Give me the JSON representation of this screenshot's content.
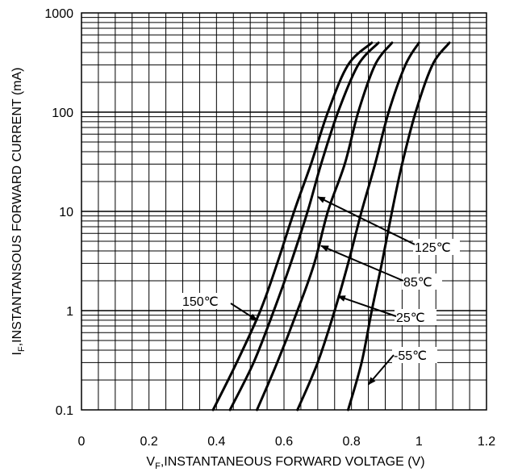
{
  "chart_data": {
    "type": "line",
    "xlabel_main": "V",
    "xlabel_sub": "F",
    "xlabel_rest": ",INSTANTANEOUS FORWARD VOLTAGE (V)",
    "ylabel_main": "I",
    "ylabel_sub": "F",
    "ylabel_rest": ",INSTANTANSOUS FORWARD CURRENT (mA)",
    "xlim": [
      0,
      1.2
    ],
    "ylim": [
      0.1,
      1000
    ],
    "yscale": "log",
    "grid": true,
    "x_ticks": [
      "0",
      "0.2",
      "0.4",
      "0.6",
      "0.8",
      "1",
      "1.2"
    ],
    "y_ticks": [
      "0.1",
      "1",
      "10",
      "100",
      "1000"
    ],
    "series": [
      {
        "name": "150℃",
        "points": [
          [
            0.39,
            0.1
          ],
          [
            0.46,
            0.3
          ],
          [
            0.53,
            1
          ],
          [
            0.58,
            3
          ],
          [
            0.63,
            10
          ],
          [
            0.68,
            30
          ],
          [
            0.73,
            100
          ],
          [
            0.79,
            300
          ],
          [
            0.86,
            500
          ]
        ]
      },
      {
        "name": "125℃",
        "points": [
          [
            0.44,
            0.1
          ],
          [
            0.51,
            0.3
          ],
          [
            0.57,
            1
          ],
          [
            0.62,
            3
          ],
          [
            0.67,
            10
          ],
          [
            0.71,
            30
          ],
          [
            0.76,
            100
          ],
          [
            0.82,
            300
          ],
          [
            0.88,
            500
          ]
        ]
      },
      {
        "name": "85℃",
        "points": [
          [
            0.52,
            0.1
          ],
          [
            0.58,
            0.3
          ],
          [
            0.64,
            1
          ],
          [
            0.69,
            3
          ],
          [
            0.73,
            10
          ],
          [
            0.78,
            30
          ],
          [
            0.82,
            100
          ],
          [
            0.87,
            300
          ],
          [
            0.92,
            500
          ]
        ]
      },
      {
        "name": "25℃",
        "points": [
          [
            0.64,
            0.1
          ],
          [
            0.7,
            0.3
          ],
          [
            0.75,
            1
          ],
          [
            0.79,
            3
          ],
          [
            0.83,
            10
          ],
          [
            0.87,
            30
          ],
          [
            0.91,
            100
          ],
          [
            0.96,
            300
          ],
          [
            1.0,
            500
          ]
        ]
      },
      {
        "name": "-55℃",
        "points": [
          [
            0.79,
            0.1
          ],
          [
            0.83,
            0.3
          ],
          [
            0.86,
            1
          ],
          [
            0.89,
            3
          ],
          [
            0.92,
            10
          ],
          [
            0.95,
            30
          ],
          [
            0.99,
            100
          ],
          [
            1.04,
            300
          ],
          [
            1.09,
            500
          ]
        ]
      }
    ],
    "annotations": [
      {
        "label": "150℃",
        "arrow_to": [
          0.52,
          0.8
        ]
      },
      {
        "label": "125℃",
        "arrow_to": [
          0.7,
          14
        ]
      },
      {
        "label": "85℃",
        "arrow_to": [
          0.71,
          4.5
        ]
      },
      {
        "label": "25℃",
        "arrow_to": [
          0.76,
          1.4
        ]
      },
      {
        "label": "-55℃",
        "arrow_to": [
          0.85,
          0.18
        ]
      }
    ]
  }
}
